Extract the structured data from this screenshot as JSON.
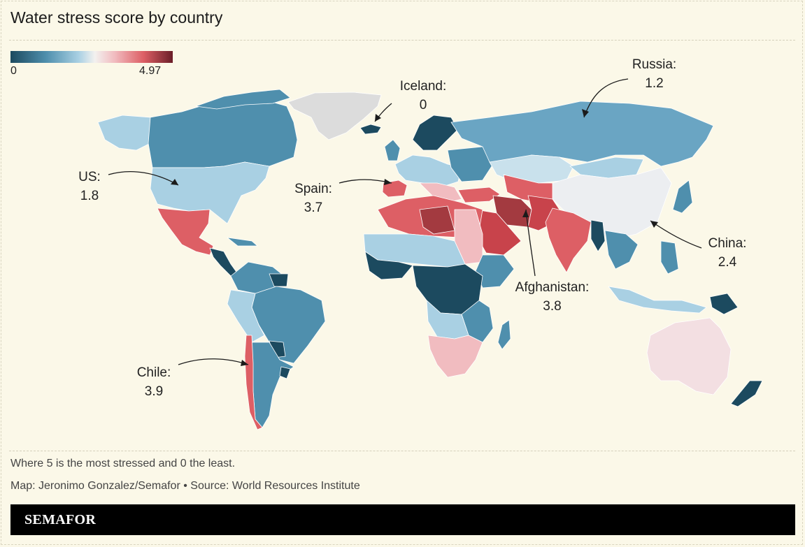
{
  "title": "Water stress score by country",
  "legend": {
    "min_label": "0",
    "max_label": "4.97",
    "colors": [
      "#1c4a5f",
      "#4f8fad",
      "#a9d0e3",
      "#f3f1ef",
      "#f1bcc0",
      "#dd5f65",
      "#6a1d27"
    ]
  },
  "callouts": {
    "russia": {
      "name": "Russia:",
      "value": "1.2"
    },
    "iceland": {
      "name": "Iceland:",
      "value": "0"
    },
    "us": {
      "name": "US:",
      "value": "1.8"
    },
    "spain": {
      "name": "Spain:",
      "value": "3.7"
    },
    "china": {
      "name": "China:",
      "value": "2.4"
    },
    "afghanistan": {
      "name": "Afghanistan:",
      "value": "3.8"
    },
    "chile": {
      "name": "Chile:",
      "value": "3.9"
    }
  },
  "notes": {
    "scale_note": "Where 5 is the most stressed and 0 the least.",
    "credit": "Map: Jeronimo Gonzalez/Semafor • Source: World Resources Institute"
  },
  "footer": {
    "brand": "SEMAFOR"
  },
  "colors": {
    "background": "#fbf8e8",
    "no_data": "#dcdcdc",
    "footer": "#000000"
  }
}
